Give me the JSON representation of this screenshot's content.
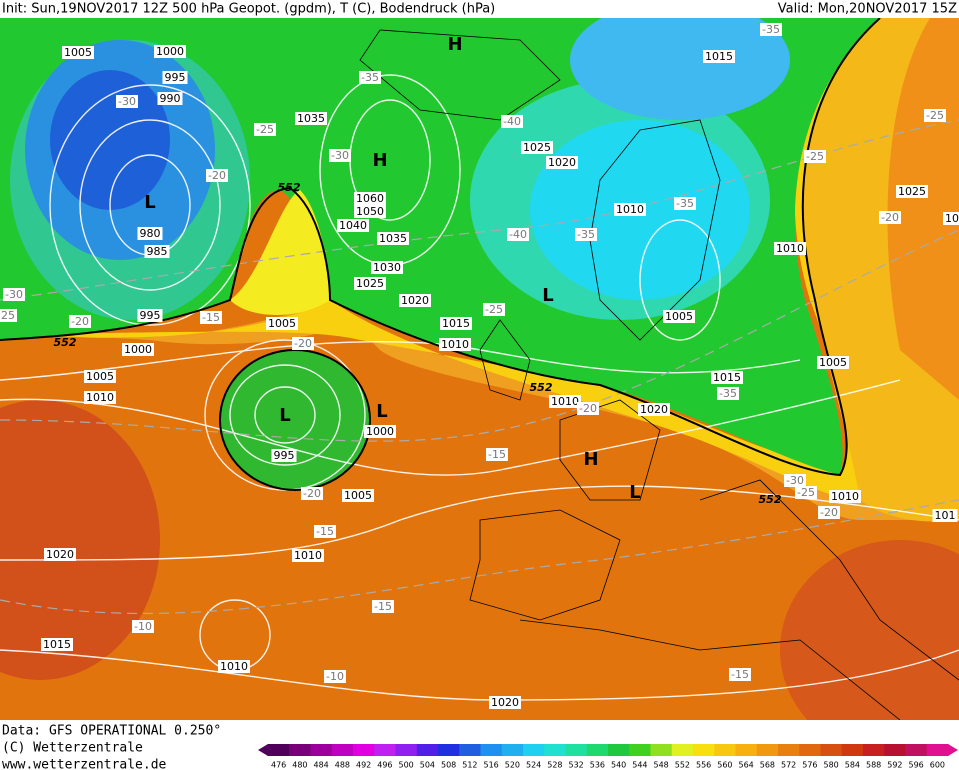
{
  "header": {
    "init": "Init: Sun,19NOV2017 12Z 500 hPa Geopot. (gpdm), T (C), Bodendruck (hPa)",
    "valid": "Valid: Mon,20NOV2017 15Z"
  },
  "footer": {
    "data_source": "Data: GFS OPERATIONAL 0.250°",
    "copyright": "(C) Wetterzentrale",
    "url": "www.wetterzentrale.de"
  },
  "colorbar": {
    "values": [
      476,
      480,
      484,
      488,
      492,
      496,
      500,
      504,
      508,
      512,
      516,
      520,
      524,
      528,
      532,
      536,
      540,
      544,
      548,
      552,
      556,
      560,
      564,
      568,
      572,
      576,
      580,
      584,
      588,
      592,
      596,
      600
    ],
    "colors": [
      "#50005a",
      "#780078",
      "#9c009c",
      "#c000c0",
      "#e000e0",
      "#c020f0",
      "#9020f0",
      "#5020e8",
      "#2030e0",
      "#2060e0",
      "#2090f0",
      "#20b0f0",
      "#20d0f0",
      "#20e0d0",
      "#20e0a0",
      "#20d870",
      "#20c840",
      "#40d020",
      "#90e020",
      "#e0f020",
      "#f8e010",
      "#f8c810",
      "#f8b010",
      "#f09810",
      "#e88010",
      "#e06810",
      "#d85010",
      "#d03810",
      "#c82020",
      "#b81030",
      "#c01060",
      "#e01090"
    ]
  },
  "isobar_labels": [
    "1005",
    "1000",
    "995",
    "990",
    "1035",
    "1060",
    "1050",
    "1040",
    "1035",
    "1030",
    "1025",
    "1020",
    "1015",
    "1010",
    "1005",
    "995",
    "1000",
    "1005",
    "1010",
    "980",
    "985",
    "1000",
    "995",
    "1005",
    "1010",
    "1020",
    "1015",
    "1010",
    "1020",
    "1025",
    "1020",
    "1010",
    "1015",
    "1025",
    "1010",
    "1005",
    "1005",
    "1015",
    "1020",
    "1010",
    "1010",
    "101",
    "10"
  ],
  "temperature_labels": [
    "-35",
    "-35",
    "-30",
    "-25",
    "-30",
    "-20",
    "-40",
    "-35",
    "-40",
    "-35",
    "-25",
    "-30",
    "25",
    "-20",
    "-15",
    "-20",
    "-35",
    "-20",
    "-15",
    "-20",
    "-15",
    "-15",
    "-10",
    "-10",
    "-15",
    "-30",
    "-25",
    "-20",
    "-25",
    "-25",
    "-20"
  ],
  "pressure_centers": [
    "H",
    "H",
    "L",
    "L",
    "L",
    "L",
    "H",
    "L"
  ],
  "contour_552_labels": [
    "552",
    "552",
    "552",
    "552"
  ]
}
